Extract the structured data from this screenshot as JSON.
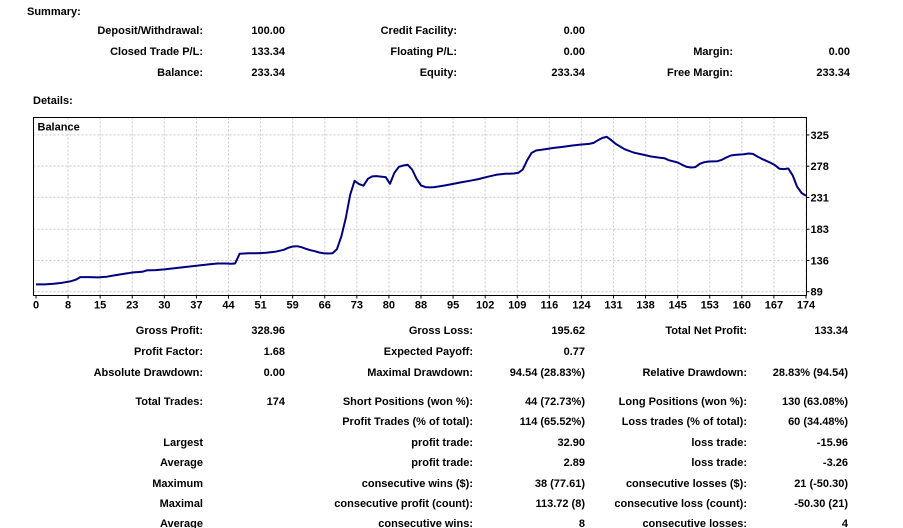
{
  "summary": {
    "heading": "Summary:",
    "rows": [
      {
        "c1": {
          "label": "Deposit/Withdrawal:",
          "value": "100.00"
        },
        "c2": {
          "label": "Credit Facility:",
          "value": "0.00"
        }
      },
      {
        "c1": {
          "label": "Closed Trade P/L:",
          "value": "133.34"
        },
        "c2": {
          "label": "Floating P/L:",
          "value": "0.00"
        },
        "c3": {
          "label": "Margin:",
          "value": "0.00"
        }
      },
      {
        "c1": {
          "label": "Balance:",
          "value": "233.34"
        },
        "c2": {
          "label": "Equity:",
          "value": "233.34"
        },
        "c3": {
          "label": "Free Margin:",
          "value": "233.34"
        }
      }
    ]
  },
  "details": {
    "heading": "Details:",
    "rows": [
      {
        "c1": {
          "label": "Gross Profit:",
          "value": "328.96"
        },
        "c2": {
          "label": "Gross Loss:",
          "value": "195.62"
        },
        "c3": {
          "label": "Total Net Profit:",
          "value": "133.34"
        }
      },
      {
        "c1": {
          "label": "Profit Factor:",
          "value": "1.68"
        },
        "c2": {
          "label": "Expected Payoff:",
          "value": "0.77"
        }
      },
      {
        "c1": {
          "label": "Absolute Drawdown:",
          "value": "0.00"
        },
        "c2": {
          "label": "Maximal Drawdown:",
          "value": "94.54 (28.83%)"
        },
        "c3": {
          "label": "Relative Drawdown:",
          "value": "28.83% (94.54)"
        }
      },
      {
        "c1": {
          "label": "Total Trades:",
          "value": "174"
        },
        "c2": {
          "label": "Short Positions (won %):",
          "value": "44 (72.73%)"
        },
        "c3": {
          "label": "Long Positions (won %):",
          "value": "130 (63.08%)"
        }
      },
      {
        "c2": {
          "label": "Profit Trades (% of total):",
          "value": "114 (65.52%)"
        },
        "c3": {
          "label": "Loss trades (% of total):",
          "value": "60 (34.48%)"
        }
      },
      {
        "c1": {
          "label": "Largest",
          "value": ""
        },
        "c2": {
          "label": "profit trade:",
          "value": "32.90"
        },
        "c3": {
          "label": "loss trade:",
          "value": "-15.96"
        }
      },
      {
        "c1": {
          "label": "Average",
          "value": ""
        },
        "c2": {
          "label": "profit trade:",
          "value": "2.89"
        },
        "c3": {
          "label": "loss trade:",
          "value": "-3.26"
        }
      },
      {
        "c1": {
          "label": "Maximum",
          "value": ""
        },
        "c2": {
          "label": "consecutive wins ($):",
          "value": "38 (77.61)"
        },
        "c3": {
          "label": "consecutive losses ($):",
          "value": "21 (-50.30)"
        }
      },
      {
        "c1": {
          "label": "Maximal",
          "value": ""
        },
        "c2": {
          "label": "consecutive profit (count):",
          "value": "113.72 (8)"
        },
        "c3": {
          "label": "consecutive loss (count):",
          "value": "-50.30 (21)"
        }
      },
      {
        "c1": {
          "label": "Average",
          "value": ""
        },
        "c2": {
          "label": "consecutive wins:",
          "value": "8"
        },
        "c3": {
          "label": "consecutive losses:",
          "value": "4"
        }
      }
    ]
  },
  "chart_data": {
    "type": "line",
    "title": "Balance",
    "xlabel": "",
    "ylabel": "",
    "xlim": [
      0,
      174
    ],
    "ylim": [
      84,
      352
    ],
    "grid": true,
    "legend_position": "top-left-inside",
    "y_axis_position": "right",
    "x_ticks": [
      0,
      8,
      15,
      23,
      30,
      37,
      44,
      51,
      59,
      66,
      73,
      80,
      88,
      95,
      102,
      109,
      116,
      124,
      131,
      138,
      145,
      153,
      160,
      167,
      174
    ],
    "y_ticks": [
      89,
      136,
      183,
      231,
      278,
      325
    ],
    "colors": {
      "line": "#000080",
      "grid": "#c8c8c8",
      "frame": "#000000",
      "background": "#ffffff",
      "text": "#000000"
    },
    "series": [
      {
        "name": "Balance",
        "points": [
          [
            0,
            100
          ],
          [
            2,
            100
          ],
          [
            4,
            101
          ],
          [
            6,
            102.5
          ],
          [
            8,
            105
          ],
          [
            9,
            107
          ],
          [
            10,
            111
          ],
          [
            12,
            111
          ],
          [
            14,
            110.5
          ],
          [
            16,
            111.5
          ],
          [
            18,
            114
          ],
          [
            20,
            116
          ],
          [
            22,
            118
          ],
          [
            24,
            119
          ],
          [
            25,
            121
          ],
          [
            27,
            121.5
          ],
          [
            29,
            122.5
          ],
          [
            31,
            124
          ],
          [
            33,
            125.5
          ],
          [
            35,
            127
          ],
          [
            37,
            128.5
          ],
          [
            39,
            130
          ],
          [
            41,
            131.5
          ],
          [
            43,
            131.5
          ],
          [
            44,
            131
          ],
          [
            45,
            131.5
          ],
          [
            46,
            146
          ],
          [
            48,
            147
          ],
          [
            50,
            147
          ],
          [
            52,
            147.5
          ],
          [
            54,
            149
          ],
          [
            56,
            152
          ],
          [
            57,
            155
          ],
          [
            58,
            157
          ],
          [
            59,
            157.5
          ],
          [
            60,
            156
          ],
          [
            61,
            153.5
          ],
          [
            62,
            151.5
          ],
          [
            63,
            150
          ],
          [
            64,
            148
          ],
          [
            65,
            147
          ],
          [
            66,
            146.5
          ],
          [
            67,
            147
          ],
          [
            68,
            153
          ],
          [
            69,
            172
          ],
          [
            70,
            200
          ],
          [
            71,
            235
          ],
          [
            72,
            256
          ],
          [
            73,
            251
          ],
          [
            74,
            248.5
          ],
          [
            75,
            259
          ],
          [
            76,
            262.5
          ],
          [
            77,
            263
          ],
          [
            79,
            261.5
          ],
          [
            80,
            251.5
          ],
          [
            81,
            268
          ],
          [
            82,
            277
          ],
          [
            83,
            279
          ],
          [
            84,
            280
          ],
          [
            85,
            273
          ],
          [
            86,
            259
          ],
          [
            87,
            249
          ],
          [
            88,
            246.5
          ],
          [
            89,
            246
          ],
          [
            90,
            246.5
          ],
          [
            92,
            248.5
          ],
          [
            94,
            251
          ],
          [
            96,
            253.5
          ],
          [
            98,
            256
          ],
          [
            100,
            258.5
          ],
          [
            102,
            262
          ],
          [
            104,
            265
          ],
          [
            106,
            266.5
          ],
          [
            108,
            267
          ],
          [
            109,
            268
          ],
          [
            110,
            273
          ],
          [
            111,
            287
          ],
          [
            112,
            298
          ],
          [
            113,
            301.5
          ],
          [
            115,
            303.5
          ],
          [
            117,
            305.5
          ],
          [
            119,
            307
          ],
          [
            121,
            309
          ],
          [
            123,
            310.5
          ],
          [
            125,
            311.5
          ],
          [
            126,
            313
          ],
          [
            127,
            317
          ],
          [
            128,
            320.5
          ],
          [
            129,
            322
          ],
          [
            130,
            317
          ],
          [
            131,
            311.5
          ],
          [
            133,
            303.5
          ],
          [
            135,
            298.5
          ],
          [
            137,
            295.5
          ],
          [
            139,
            292.5
          ],
          [
            141,
            290.5
          ],
          [
            142,
            290
          ],
          [
            143,
            287
          ],
          [
            145,
            283.5
          ],
          [
            146,
            280
          ],
          [
            147,
            277
          ],
          [
            148,
            276
          ],
          [
            149,
            276.5
          ],
          [
            150,
            281.5
          ],
          [
            151,
            284
          ],
          [
            152,
            285
          ],
          [
            154,
            285.5
          ],
          [
            155,
            287.5
          ],
          [
            156,
            291
          ],
          [
            157,
            294
          ],
          [
            158,
            295
          ],
          [
            160,
            296
          ],
          [
            161,
            297
          ],
          [
            162,
            296.5
          ],
          [
            163,
            292.5
          ],
          [
            164,
            289
          ],
          [
            165,
            286
          ],
          [
            166,
            283
          ],
          [
            167,
            279.5
          ],
          [
            168,
            274
          ],
          [
            169,
            273.5
          ],
          [
            170,
            274.5
          ],
          [
            171,
            264
          ],
          [
            172,
            247
          ],
          [
            173,
            237.5
          ],
          [
            174,
            233.34
          ]
        ]
      }
    ]
  }
}
